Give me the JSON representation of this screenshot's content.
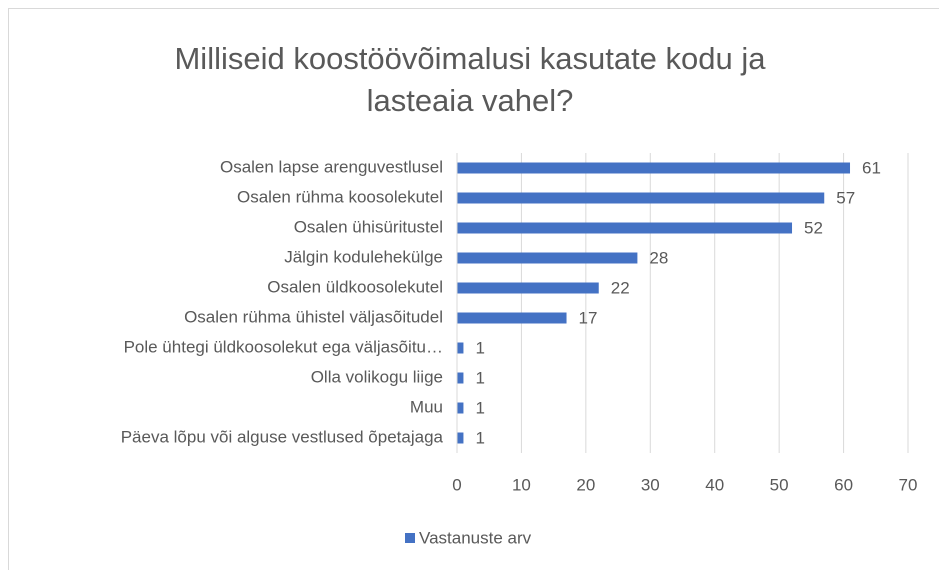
{
  "chart_data": {
    "type": "bar",
    "orientation": "horizontal",
    "title": "Milliseid koostöövõimalusi kasutate kodu ja lasteaia vahel?",
    "categories": [
      "Osalen lapse arenguvestlusel",
      "Osalen rühma koosolekutel",
      "Osalen ühisüritustel",
      "Jälgin kodulehekülge",
      "Osalen üldkoosolekutel",
      "Osalen rühma ühistel väljasõitudel",
      "Pole ühtegi üldkoosolekut ega väljasõitu…",
      "Olla volikogu liige",
      "Muu",
      "Päeva lõpu või alguse vestlused õpetajaga"
    ],
    "series": [
      {
        "name": "Vastanuste arv",
        "color": "#4472c4",
        "values": [
          61,
          57,
          52,
          28,
          22,
          17,
          1,
          1,
          1,
          1
        ]
      }
    ],
    "xlim": [
      0,
      70
    ],
    "xticks": [
      0,
      10,
      20,
      30,
      40,
      50,
      60,
      70
    ],
    "grid": true,
    "legend": "bottom"
  }
}
